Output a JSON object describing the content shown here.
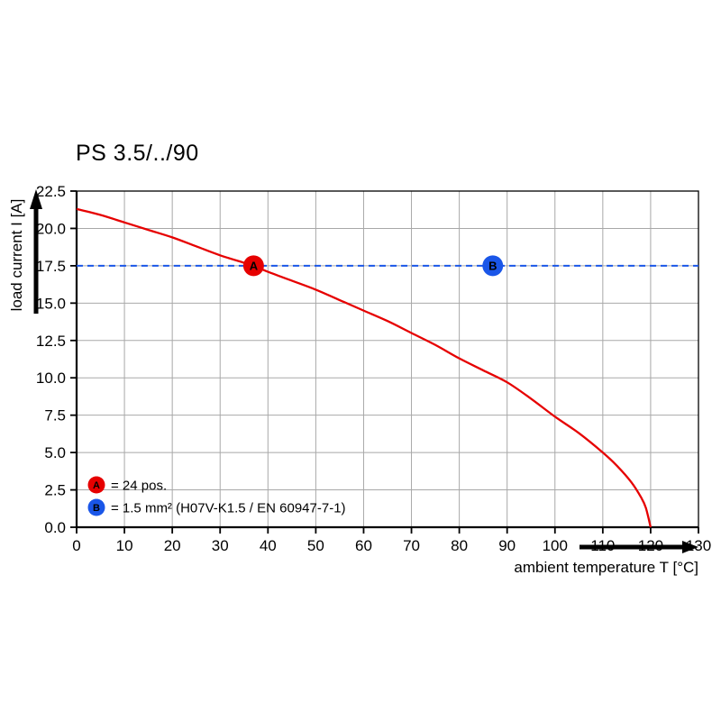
{
  "header": {
    "title": "PS 3.5/../90"
  },
  "colors": {
    "curve_red": "#e60000",
    "reference_blue": "#1a56e8",
    "grid": "#a8a8a8",
    "axis": "#000000"
  },
  "chart_data": {
    "type": "line",
    "title": "PS 3.5/../90",
    "xlabel": "ambient temperature T [°C]",
    "ylabel": "load current I [A]",
    "xlim": [
      0,
      130
    ],
    "ylim": [
      0,
      22.5
    ],
    "x_ticks": [
      0,
      10,
      20,
      30,
      40,
      50,
      60,
      70,
      80,
      90,
      100,
      110,
      120,
      130
    ],
    "y_ticks": [
      0.0,
      2.5,
      5.0,
      7.5,
      10.0,
      12.5,
      15.0,
      17.5,
      20.0,
      22.5
    ],
    "grid": true,
    "series": [
      {
        "name": "derating-curve",
        "color": "#e60000",
        "style": "solid",
        "points": [
          [
            0,
            21.3
          ],
          [
            5,
            20.9
          ],
          [
            10,
            20.4
          ],
          [
            15,
            19.9
          ],
          [
            20,
            19.4
          ],
          [
            25,
            18.8
          ],
          [
            30,
            18.2
          ],
          [
            35,
            17.7
          ],
          [
            37,
            17.5
          ],
          [
            40,
            17.1
          ],
          [
            45,
            16.5
          ],
          [
            50,
            15.9
          ],
          [
            55,
            15.2
          ],
          [
            60,
            14.5
          ],
          [
            65,
            13.8
          ],
          [
            70,
            13.0
          ],
          [
            75,
            12.2
          ],
          [
            80,
            11.3
          ],
          [
            85,
            10.5
          ],
          [
            90,
            9.7
          ],
          [
            95,
            8.6
          ],
          [
            100,
            7.4
          ],
          [
            105,
            6.3
          ],
          [
            110,
            5.0
          ],
          [
            113,
            4.1
          ],
          [
            116,
            3.0
          ],
          [
            118,
            2.0
          ],
          [
            119,
            1.3
          ],
          [
            120,
            0
          ]
        ]
      },
      {
        "name": "reference-line-17-5A",
        "color": "#1a56e8",
        "style": "dashed",
        "points": [
          [
            0,
            17.5
          ],
          [
            130,
            17.5
          ]
        ]
      }
    ],
    "markers": [
      {
        "label": "A",
        "x": 37,
        "y": 17.5,
        "color": "#e60000"
      },
      {
        "label": "B",
        "x": 87,
        "y": 17.5,
        "color": "#1a56e8"
      }
    ],
    "legend": [
      {
        "label": "A",
        "color": "#e60000",
        "text": "= 24 pos."
      },
      {
        "label": "B",
        "color": "#1a56e8",
        "text": "= 1.5 mm² (H07V-K1.5 / EN 60947-7-1)"
      }
    ],
    "legend_position": "lower-left"
  }
}
